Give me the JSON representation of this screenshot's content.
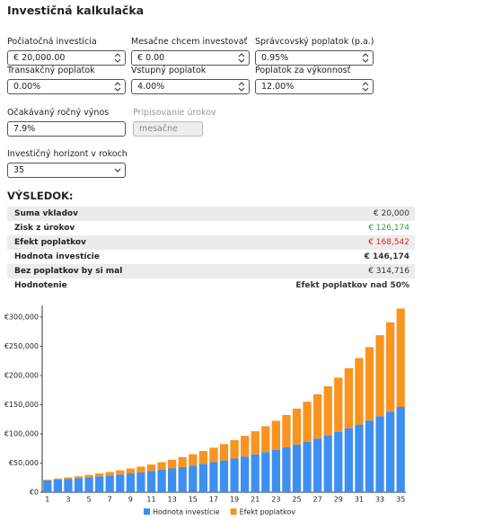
{
  "header": {
    "title": "Investičná kalkulačka"
  },
  "form": {
    "fields": [
      {
        "label": "Počiatočná investícia",
        "value": "€ 20,000.00"
      },
      {
        "label": "Mesačne chcem investovať",
        "value": "€ 0.00"
      },
      {
        "label": "Správcovský poplatok (p.a.)",
        "value": "0.95%"
      },
      {
        "label": "Transakčný poplatok",
        "value": "0.00%"
      },
      {
        "label": "Vstupný poplatok",
        "value": "4.00%"
      },
      {
        "label": "Poplatok za výkonnosť",
        "value": "12.00%"
      },
      {
        "label": "Očakávaný ročný výnos",
        "value": "7.9%"
      },
      {
        "label": "Pripisovanie úrokov",
        "value": "mesačne"
      },
      {
        "label": "Investičný horizont v rokoch",
        "value": "35"
      }
    ]
  },
  "result": {
    "title": "VÝSLEDOK:",
    "rows": [
      [
        "Suma vkladov",
        "€ 20,000"
      ],
      [
        "Zisk z úrokov",
        "€ 126,174"
      ],
      [
        "Efekt poplatkov",
        "€ 168,542"
      ],
      [
        "Hodnota investície",
        "€ 146,174"
      ],
      [
        "Bez poplatkov by si mal",
        "€ 314,716"
      ],
      [
        "Hodnotenie",
        "Efekt poplatkov nad 50%"
      ]
    ]
  },
  "chart_data": {
    "type": "stacked-bar",
    "categories": [
      "1",
      null,
      "3",
      null,
      "5",
      null,
      "7",
      null,
      "9",
      null,
      "11",
      null,
      "13",
      null,
      "15",
      null,
      "17",
      null,
      "19",
      null,
      "21",
      null,
      "23",
      null,
      "25",
      null,
      "27",
      null,
      "29",
      null,
      "31",
      null,
      "33",
      null,
      "35"
    ],
    "series": [
      {
        "name": "Hodnota investície",
        "color": "#3d8ff2",
        "values": [
          20300,
          21600,
          22900,
          24200,
          25700,
          27200,
          28800,
          30500,
          32400,
          34300,
          36300,
          38500,
          40800,
          43200,
          45800,
          48600,
          51500,
          54500,
          57800,
          61200,
          64900,
          68800,
          72900,
          77200,
          81900,
          86700,
          91900,
          97400,
          103200,
          109400,
          115900,
          122800,
          130200,
          138000,
          146174
        ]
      },
      {
        "name": "Efekt poplatkov",
        "color": "#f8941f",
        "values": [
          1300,
          1900,
          2500,
          3200,
          4000,
          4900,
          5900,
          7000,
          8300,
          9700,
          11200,
          13000,
          14900,
          17000,
          19300,
          22000,
          24800,
          28000,
          31500,
          35400,
          39600,
          44300,
          49500,
          55200,
          61400,
          68300,
          75800,
          84000,
          93100,
          103000,
          113900,
          125800,
          138800,
          153100,
          168542
        ]
      }
    ],
    "ylim": [
      0,
      320000
    ],
    "yticks": [
      {
        "value": 0,
        "label": "€0"
      },
      {
        "value": 50000,
        "label": "€50,000"
      },
      {
        "value": 100000,
        "label": "€100,000"
      },
      {
        "value": 150000,
        "label": "€150,000"
      },
      {
        "value": 200000,
        "label": "€200,000"
      },
      {
        "value": 250000,
        "label": "€250,000"
      },
      {
        "value": 300000,
        "label": "€300,000"
      }
    ],
    "grid": false,
    "legend": "bottom"
  }
}
